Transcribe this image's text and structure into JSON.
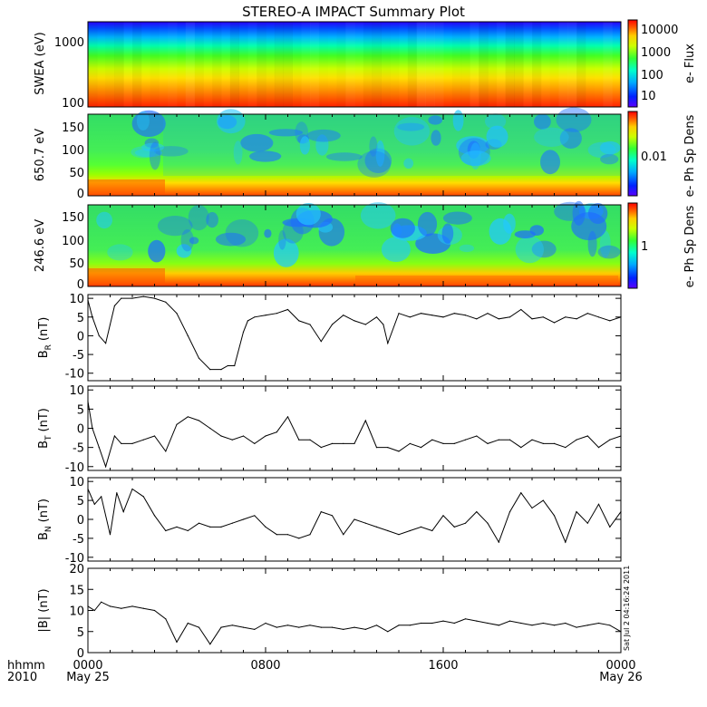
{
  "title": "STEREO-A IMPACT Summary Plot",
  "footer": {
    "hhmm_label": "hhmm",
    "year_label": "2010",
    "tick_labels": [
      "0000",
      "0800",
      "1600",
      "0000"
    ],
    "date_left": "May 25",
    "date_right": "May 26",
    "timestamp": "Sat Jul  2 04:16:24 2011"
  },
  "chart_data": [
    {
      "type": "heatmap",
      "ylabel": "SWEA (eV)",
      "y_scale": "log",
      "yticks": [
        "1000",
        "100"
      ],
      "colorbar": {
        "label": "e- Flux",
        "ticks": [
          "10000",
          "1000",
          "100",
          "10"
        ]
      }
    },
    {
      "type": "heatmap",
      "ylabel": "650.7 eV",
      "ylim": [
        0,
        180
      ],
      "yticks": [
        "150",
        "100",
        "50",
        "0"
      ],
      "colorbar": {
        "label": "e- Ph Sp Dens",
        "ticks": [
          "0.01"
        ]
      }
    },
    {
      "type": "heatmap",
      "ylabel": "246.6 eV",
      "ylim": [
        0,
        180
      ],
      "yticks": [
        "150",
        "100",
        "50",
        "0"
      ],
      "colorbar": {
        "label": "e- Ph Sp Dens",
        "ticks": [
          "1"
        ]
      }
    },
    {
      "type": "line",
      "ylabel": "BR (nT)",
      "ylabel_main": "B",
      "ylabel_sub": "R",
      "ylabel_unit": "(nT)",
      "ylim": [
        -12,
        11
      ],
      "yticks": [
        "10",
        "5",
        "0",
        "-5",
        "-10"
      ],
      "x_hours": [
        0,
        0.2,
        0.5,
        0.8,
        1.0,
        1.2,
        1.5,
        2,
        2.5,
        3,
        3.5,
        4,
        4.5,
        5,
        5.5,
        6,
        6.3,
        6.6,
        7,
        7.2,
        7.5,
        8,
        8.5,
        9,
        9.5,
        10,
        10.5,
        11,
        11.5,
        12,
        12.5,
        13,
        13.3,
        13.5,
        14,
        14.5,
        15,
        15.5,
        16,
        16.5,
        17,
        17.5,
        18,
        18.5,
        19,
        19.5,
        20,
        20.5,
        21,
        21.5,
        22,
        22.5,
        23,
        23.5,
        24
      ],
      "values": [
        9.5,
        5,
        0,
        -2,
        3,
        8,
        10,
        10,
        10.5,
        10,
        9,
        6,
        0,
        -6,
        -9,
        -9,
        -8,
        -8,
        1,
        4,
        5,
        5.5,
        6,
        7,
        4,
        3,
        -1.5,
        3,
        5.5,
        4,
        3,
        5,
        3,
        -2,
        6,
        5,
        6,
        5.5,
        5,
        6,
        5.5,
        4.5,
        6,
        4.5,
        5,
        7,
        4.5,
        5,
        3.5,
        5,
        4.5,
        6,
        5,
        4,
        5
      ]
    },
    {
      "type": "line",
      "ylabel": "BT (nT)",
      "ylabel_main": "B",
      "ylabel_sub": "T",
      "ylabel_unit": "(nT)",
      "ylim": [
        -11,
        11
      ],
      "yticks": [
        "10",
        "5",
        "0",
        "-5",
        "-10"
      ],
      "x_hours": [
        0,
        0.2,
        0.5,
        0.8,
        1.2,
        1.5,
        2,
        2.5,
        3,
        3.5,
        4,
        4.5,
        5,
        5.5,
        6,
        6.5,
        7,
        7.5,
        8,
        8.5,
        9,
        9.5,
        10,
        10.5,
        11,
        11.5,
        12,
        12.5,
        13,
        13.5,
        14,
        14.5,
        15,
        15.5,
        16,
        16.5,
        17,
        17.5,
        18,
        18.5,
        19,
        19.5,
        20,
        20.5,
        21,
        21.5,
        22,
        22.5,
        23,
        23.5,
        24
      ],
      "values": [
        7,
        0,
        -5,
        -10,
        -2,
        -4,
        -4,
        -3,
        -2,
        -6,
        1,
        3,
        2,
        0,
        -2,
        -3,
        -2,
        -4,
        -2,
        -1,
        3,
        -3,
        -3,
        -5,
        -4,
        -4,
        -4,
        2,
        -5,
        -5,
        -6,
        -4,
        -5,
        -3,
        -4,
        -4,
        -3,
        -2,
        -4,
        -3,
        -3,
        -5,
        -3,
        -4,
        -4,
        -5,
        -3,
        -2,
        -5,
        -3,
        -2
      ]
    },
    {
      "type": "line",
      "ylabel": "BN (nT)",
      "ylabel_main": "B",
      "ylabel_sub": "N",
      "ylabel_unit": "(nT)",
      "ylim": [
        -11,
        11
      ],
      "yticks": [
        "10",
        "5",
        "0",
        "-5",
        "-10"
      ],
      "x_hours": [
        0,
        0.3,
        0.6,
        1.0,
        1.3,
        1.6,
        2,
        2.5,
        3,
        3.5,
        4,
        4.5,
        5,
        5.5,
        6,
        6.5,
        7,
        7.5,
        8,
        8.5,
        9,
        9.5,
        10,
        10.5,
        11,
        11.5,
        12,
        12.5,
        13,
        13.5,
        14,
        14.5,
        15,
        15.5,
        16,
        16.5,
        17,
        17.5,
        18,
        18.5,
        19,
        19.5,
        20,
        20.5,
        21,
        21.5,
        22,
        22.5,
        23,
        23.5,
        24
      ],
      "values": [
        8,
        4,
        6,
        -4,
        7,
        2,
        8,
        6,
        1,
        -3,
        -2,
        -3,
        -1,
        -2,
        -2,
        -1,
        0,
        1,
        -2,
        -4,
        -4,
        -5,
        -4,
        2,
        1,
        -4,
        0,
        -1,
        -2,
        -3,
        -4,
        -3,
        -2,
        -3,
        1,
        -2,
        -1,
        2,
        -1,
        -6,
        2,
        7,
        3,
        5,
        1,
        -6,
        2,
        -1,
        4,
        -2,
        2
      ]
    },
    {
      "type": "line",
      "ylabel": "|B| (nT)",
      "ylim": [
        0,
        20
      ],
      "yticks": [
        "20",
        "15",
        "10",
        "5",
        "0"
      ],
      "x_hours": [
        0,
        0.3,
        0.6,
        1.0,
        1.5,
        2,
        2.5,
        3,
        3.5,
        4,
        4.5,
        5,
        5.5,
        6,
        6.5,
        7,
        7.5,
        8,
        8.5,
        9,
        9.5,
        10,
        10.5,
        11,
        11.5,
        12,
        12.5,
        13,
        13.5,
        14,
        14.5,
        15,
        15.5,
        16,
        16.5,
        17,
        17.5,
        18,
        18.5,
        19,
        19.5,
        20,
        20.5,
        21,
        21.5,
        22,
        22.5,
        23,
        23.5,
        24
      ],
      "values": [
        11,
        10,
        12,
        11,
        10.5,
        11,
        10.5,
        10,
        8,
        2.5,
        7,
        6,
        2,
        6,
        6.5,
        6,
        5.5,
        7,
        6,
        6.5,
        6,
        6.5,
        6,
        6,
        5.5,
        6,
        5.5,
        6.5,
        5,
        6.5,
        6.5,
        7,
        7,
        7.5,
        7,
        8,
        7.5,
        7,
        6.5,
        7.5,
        7,
        6.5,
        7,
        6.5,
        7,
        6,
        6.5,
        7,
        6.5,
        5
      ]
    }
  ]
}
